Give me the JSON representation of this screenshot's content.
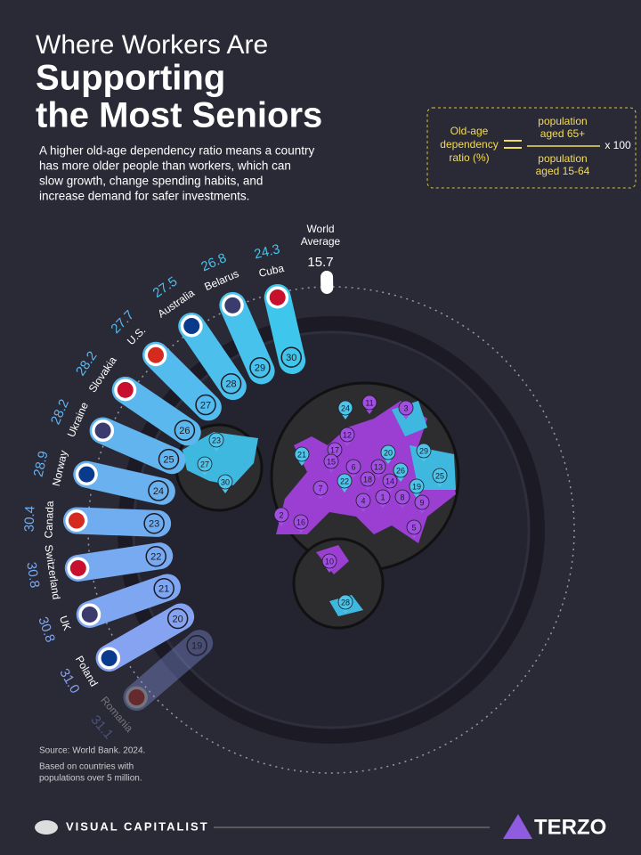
{
  "header": {
    "title_line1": "Where Workers Are",
    "title_line2": "Supporting",
    "title_line3": "the Most Seniors",
    "subtitle": [
      "A higher old-age dependency ratio means a country",
      "has more older people than workers, which can",
      "slow growth, change spending habits, and",
      "increase demand for safer investments."
    ]
  },
  "formula": {
    "left": [
      "Old-age",
      "dependency",
      "ratio (%)"
    ],
    "numerator": [
      "population",
      "aged 65+"
    ],
    "denominator": [
      "population",
      "aged 15-64"
    ],
    "multiplier": "x 100"
  },
  "chart_data": {
    "type": "radial_bar",
    "categories": [
      "Cuba",
      "Belarus",
      "Australia",
      "U.S.",
      "Slovakia",
      "Ukraine",
      "Norway",
      "Canada",
      "Switzerland",
      "UK",
      "Poland",
      "Romania"
    ],
    "values": [
      24.3,
      26.8,
      27.5,
      27.7,
      28.2,
      28.2,
      28.9,
      30.4,
      30.8,
      30.8,
      31.0,
      31.1
    ],
    "value_labels": [
      "24.3",
      "26.8",
      "27.5",
      "27.7",
      "28.2",
      "28.2",
      "28.9",
      "30.4",
      "30.8",
      "30.8",
      "31.0",
      "31.1"
    ],
    "ranks": [
      30,
      29,
      28,
      27,
      26,
      25,
      24,
      23,
      22,
      21,
      20,
      19
    ],
    "colors": [
      "#3fc6ec",
      "#8c9ff2"
    ],
    "reference": {
      "label": [
        "World",
        "Average"
      ],
      "value": 15.7
    }
  },
  "map_markers": [
    24,
    11,
    3,
    12,
    21,
    17,
    15,
    20,
    29,
    6,
    13,
    26,
    25,
    7,
    22,
    18,
    14,
    19,
    8,
    9,
    4,
    1,
    16,
    2,
    5,
    23,
    27,
    30,
    10,
    28
  ],
  "footer": {
    "source": "Source: World Bank. 2024.",
    "note": [
      "Based on countries with",
      "populations over 5 million."
    ],
    "brand": "VISUAL CAPITALIST",
    "partner": "TERZO"
  }
}
